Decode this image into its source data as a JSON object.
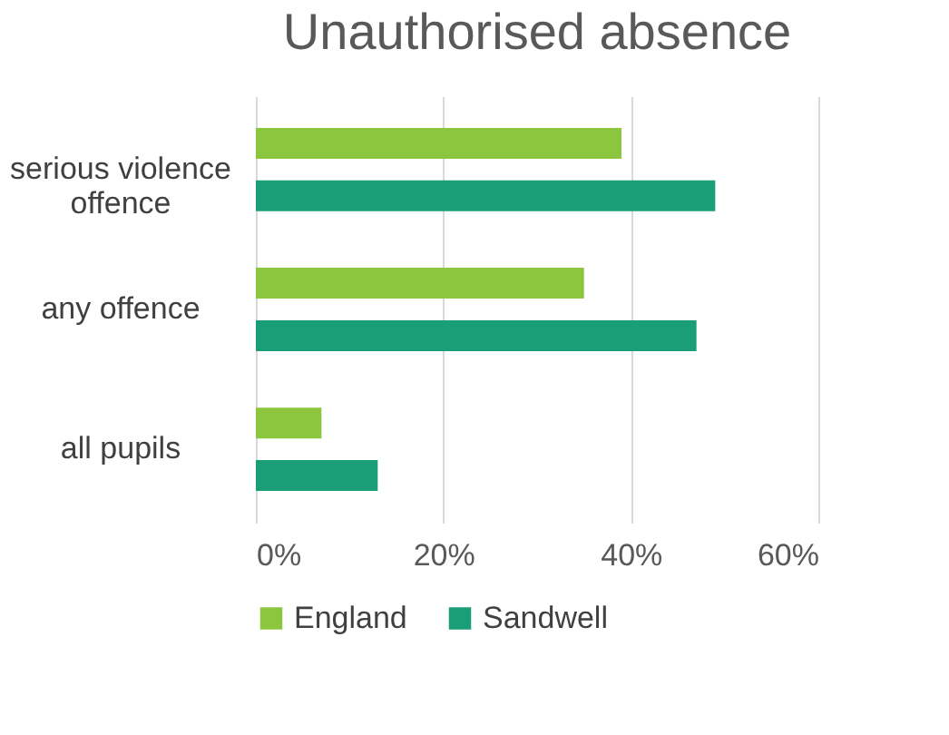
{
  "chart_data": {
    "type": "bar",
    "orientation": "horizontal",
    "title": "Unauthorised absence",
    "categories": [
      "serious violence offence",
      "any offence",
      "all pupils"
    ],
    "series": [
      {
        "name": "England",
        "color": "#8cc63f",
        "values": [
          39,
          35,
          7
        ]
      },
      {
        "name": "Sandwell",
        "color": "#1a9e77",
        "values": [
          49,
          47,
          13
        ]
      }
    ],
    "xlim": [
      0,
      60
    ],
    "xticks": [
      {
        "value": 0,
        "label": "0%"
      },
      {
        "value": 20,
        "label": "20%"
      },
      {
        "value": 40,
        "label": "40%"
      },
      {
        "value": 60,
        "label": "60%"
      }
    ],
    "grid": "x",
    "legend": "bottom"
  }
}
